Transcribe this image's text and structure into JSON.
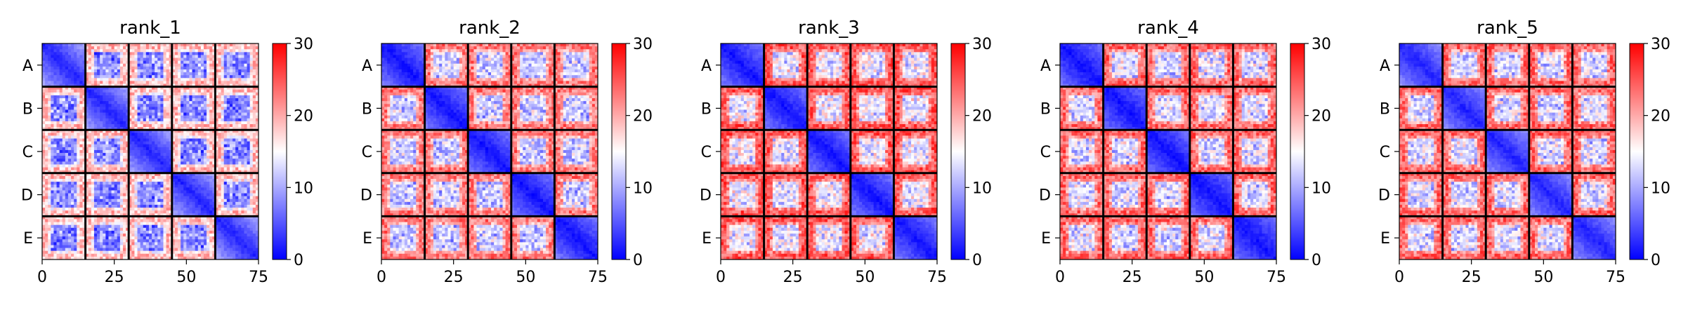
{
  "chart_data": {
    "type": "heatmap",
    "colormap": {
      "name": "bwr",
      "low": "#0000ff",
      "mid": "#ffffff",
      "high": "#ff0000"
    },
    "block_labels": [
      "A",
      "B",
      "C",
      "D",
      "E"
    ],
    "block_size": 15,
    "xlim": [
      0,
      75
    ],
    "x_ticks": [
      "0",
      "25",
      "50",
      "75"
    ],
    "x_tick_values": [
      0,
      25,
      50,
      75
    ],
    "colorbar": {
      "range": [
        0,
        30
      ],
      "ticks": [
        "0",
        "10",
        "20",
        "30"
      ],
      "tick_values": [
        0,
        10,
        20,
        30
      ]
    },
    "block_boundary_color": "#000000",
    "panels": [
      {
        "title": "rank_1",
        "diag_base": 2,
        "diag_slope": 0.55,
        "diag_cap": 16,
        "off_mean": 16
      },
      {
        "title": "rank_2",
        "diag_base": 1,
        "diag_slope": 0.45,
        "diag_cap": 18,
        "off_mean": 20
      },
      {
        "title": "rank_3",
        "diag_base": 1,
        "diag_slope": 0.45,
        "diag_cap": 18,
        "off_mean": 22
      },
      {
        "title": "rank_4",
        "diag_base": 1,
        "diag_slope": 0.4,
        "diag_cap": 17,
        "off_mean": 21
      },
      {
        "title": "rank_5",
        "diag_base": 2,
        "diag_slope": 0.45,
        "diag_cap": 18,
        "off_mean": 21
      }
    ]
  }
}
